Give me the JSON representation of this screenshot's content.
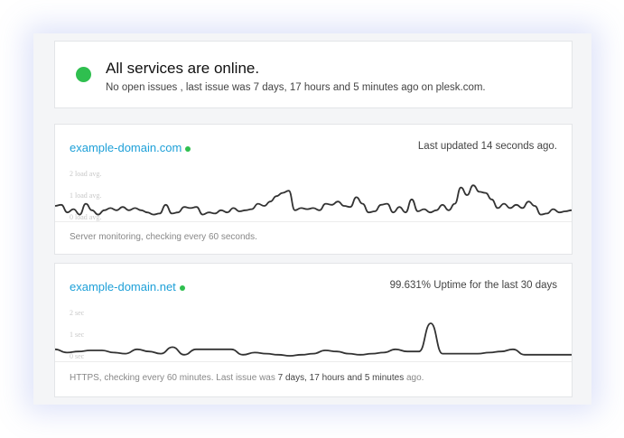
{
  "status": {
    "title": "All services are online.",
    "subtitle": "No open issues , last issue was 7 days, 17 hours and 5 minutes ago on plesk.com.",
    "color": "#2fbf4f"
  },
  "monitors": [
    {
      "name": "example-domain.com",
      "right_text": "Last updated 14 seconds ago.",
      "footer": "Server monitoring, checking every 60 seconds.",
      "axis_labels": [
        "2 load avg.",
        "1 load avg.",
        "0 load avg."
      ],
      "values": [
        0.5,
        0.55,
        0.2,
        0.35,
        0.1,
        0.6,
        0.3,
        0.1,
        0.3,
        0.4,
        0.3,
        0.45,
        0.3,
        0.4,
        0.3,
        0.2,
        0.1,
        0.15,
        0.55,
        0.15,
        0.2,
        0.45,
        0.4,
        0.45,
        0.1,
        0.2,
        0.15,
        0.3,
        0.2,
        0.4,
        0.25,
        0.3,
        0.35,
        0.6,
        0.5,
        0.7,
        0.95,
        1.1,
        1.2,
        0.3,
        0.4,
        0.35,
        0.4,
        0.3,
        0.6,
        0.55,
        0.7,
        0.5,
        0.45,
        0.9,
        0.6,
        0.2,
        0.25,
        0.55,
        0.6,
        0.2,
        0.45,
        0.2,
        0.8,
        0.25,
        0.35,
        0.2,
        0.3,
        0.55,
        0.3,
        0.6,
        1.35,
        1.0,
        1.45,
        1.15,
        1.1,
        0.8,
        0.4,
        0.6,
        0.4,
        0.55,
        0.4,
        0.7,
        0.5,
        0.1,
        0.15,
        0.35,
        0.2,
        0.25,
        0.3
      ]
    },
    {
      "name": "example-domain.net",
      "right_text": "99.631% Uptime for the last 30 days",
      "footer_prefix": "HTTPS, checking every 60 minutes. Last issue was ",
      "footer_bold": "7 days, 17 hours and 5 minutes",
      "footer_suffix": " ago.",
      "axis_labels": [
        "2 sec",
        "1 sec",
        "0 sec"
      ],
      "values": [
        0.3,
        0.15,
        0.2,
        0.25,
        0.25,
        0.15,
        0.1,
        0.3,
        0.2,
        0.1,
        0.4,
        0.05,
        0.3,
        0.3,
        0.3,
        0.3,
        0.05,
        0.15,
        0.1,
        0.05,
        0.0,
        0.05,
        0.1,
        0.25,
        0.2,
        0.1,
        0.05,
        0.1,
        0.15,
        0.3,
        0.2,
        0.2,
        1.5,
        0.1,
        0.1,
        0.1,
        0.1,
        0.15,
        0.2,
        0.3,
        0.05,
        0.05,
        0.05,
        0.05,
        0.05
      ]
    }
  ]
}
